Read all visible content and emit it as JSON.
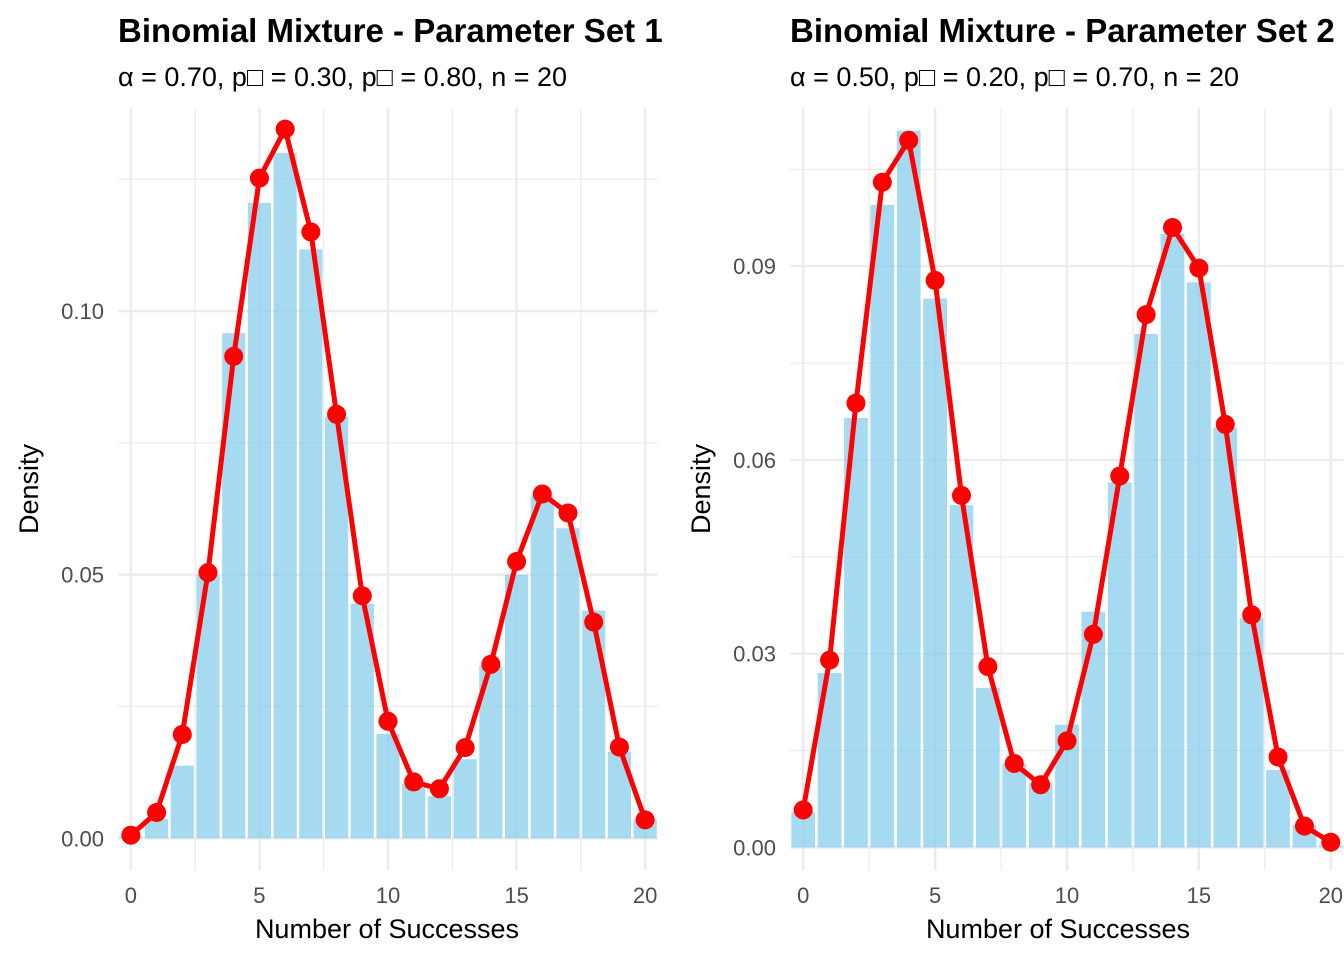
{
  "chart_data": [
    {
      "type": "bar",
      "title": "Binomial Mixture - Parameter Set 1",
      "subtitle": "α = 0.70, p□ = 0.30, p□ = 0.80, n = 20",
      "xlabel": "Number of Successes",
      "ylabel": "Density",
      "xlim": [
        -0.5,
        20.5
      ],
      "ylim": [
        -0.006,
        0.1385
      ],
      "x_ticks": [
        0,
        5,
        10,
        15,
        20
      ],
      "y_ticks": [
        0.0,
        0.05,
        0.1
      ],
      "y_tick_labels": [
        "0.00",
        "0.05",
        "0.10"
      ],
      "grid": true,
      "bar_color": "#87ceeb",
      "line_color": "#ff0000",
      "x": [
        0,
        1,
        2,
        3,
        4,
        5,
        6,
        7,
        8,
        9,
        10,
        11,
        12,
        13,
        14,
        15,
        16,
        17,
        18,
        19,
        20
      ],
      "series": [
        {
          "values": [
            0.0004,
            0.0037,
            0.0138,
            0.05,
            0.0958,
            0.1205,
            0.13,
            0.1117,
            0.08,
            0.0445,
            0.0198,
            0.0103,
            0.008,
            0.015,
            0.0327,
            0.05,
            0.065,
            0.0588,
            0.0432,
            0.0164,
            0.0037
          ]
        },
        {
          "values": [
            0.0006,
            0.0049,
            0.0197,
            0.0504,
            0.0914,
            0.1252,
            0.1345,
            0.115,
            0.0804,
            0.046,
            0.0222,
            0.0107,
            0.0094,
            0.0172,
            0.033,
            0.0525,
            0.0653,
            0.0617,
            0.041,
            0.0173,
            0.0035
          ]
        }
      ]
    },
    {
      "type": "bar",
      "title": "Binomial Mixture - Parameter Set 2",
      "subtitle": "α = 0.50, p□ = 0.20, p□ = 0.70, n = 20",
      "xlabel": "Number of Successes",
      "ylabel": "Density",
      "xlim": [
        -0.5,
        20.5
      ],
      "ylim": [
        -0.0035,
        0.1145
      ],
      "x_ticks": [
        0,
        5,
        10,
        15,
        20
      ],
      "y_ticks": [
        0.0,
        0.03,
        0.06,
        0.09
      ],
      "y_tick_labels": [
        "0.00",
        "0.03",
        "0.06",
        "0.09"
      ],
      "grid": true,
      "bar_color": "#87ceeb",
      "line_color": "#ff0000",
      "x": [
        0,
        1,
        2,
        3,
        4,
        5,
        6,
        7,
        8,
        9,
        10,
        11,
        12,
        13,
        14,
        15,
        16,
        17,
        18,
        19,
        20
      ],
      "series": [
        {
          "values": [
            0.0055,
            0.027,
            0.0665,
            0.0995,
            0.111,
            0.085,
            0.053,
            0.0247,
            0.013,
            0.01,
            0.019,
            0.0365,
            0.0565,
            0.0795,
            0.095,
            0.0875,
            0.065,
            0.0355,
            0.012,
            0.0035,
            0.0003
          ]
        },
        {
          "values": [
            0.0058,
            0.029,
            0.0688,
            0.103,
            0.1095,
            0.0878,
            0.0545,
            0.028,
            0.013,
            0.0097,
            0.0165,
            0.033,
            0.0575,
            0.0825,
            0.096,
            0.0897,
            0.0655,
            0.036,
            0.014,
            0.0033,
            0.0008
          ]
        }
      ]
    }
  ]
}
